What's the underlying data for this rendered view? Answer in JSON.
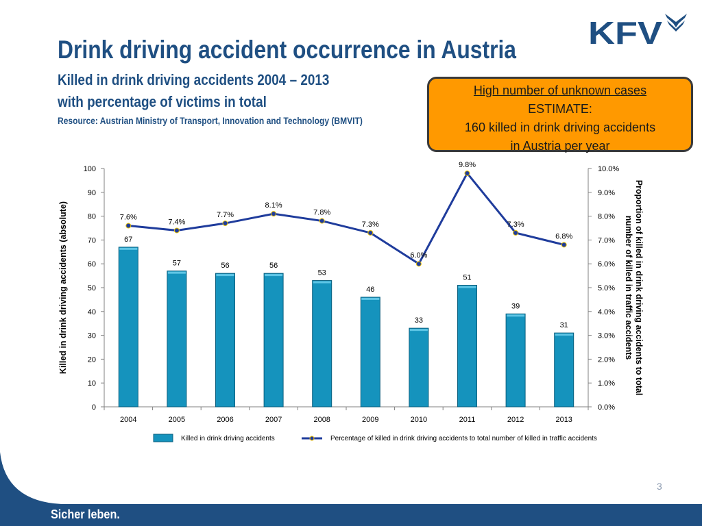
{
  "header": {
    "title": "Drink driving accident occurrence in Austria",
    "subtitle_line1": "Killed in drink driving accidents 2004 – 2013",
    "subtitle_line2": "with percentage of victims in total",
    "resource": "Resource: Austrian Ministry of Transport, Innovation and Technology (BMVIT)",
    "logo_text": "KFV"
  },
  "callout": {
    "line1": "High number of unknown cases",
    "line2": "ESTIMATE:",
    "line3": "160 killed in drink driving accidents",
    "line4": "in Austria per year"
  },
  "chart_data": {
    "type": "bar+line",
    "categories": [
      "2004",
      "2005",
      "2006",
      "2007",
      "2008",
      "2009",
      "2010",
      "2011",
      "2012",
      "2013"
    ],
    "series": [
      {
        "name": "Killed in drink driving accidents",
        "type": "bar",
        "axis": "left",
        "values": [
          67,
          57,
          56,
          56,
          53,
          46,
          33,
          51,
          39,
          31
        ],
        "labels": [
          "67",
          "57",
          "56",
          "56",
          "53",
          "46",
          "33",
          "51",
          "39",
          "31"
        ]
      },
      {
        "name": "Percentage of killed in drink driving accidents to total number of killed in traffic accidents",
        "type": "line",
        "axis": "right",
        "values": [
          7.6,
          7.4,
          7.7,
          8.1,
          7.8,
          7.3,
          6.0,
          9.8,
          7.3,
          6.8
        ],
        "labels": [
          "7.6%",
          "7.4%",
          "7.7%",
          "8.1%",
          "7.8%",
          "7.3%",
          "6.0%",
          "9.8%",
          "7.3%",
          "6.8%"
        ]
      }
    ],
    "ylabel_left": "Killed in drink driving accidents (absolute)",
    "ylabel_right_line1": "Proportion of killed in drink driving accidents to total",
    "ylabel_right_line2": "number of killed in traffic accidents",
    "ylim_left": [
      0,
      100
    ],
    "yticks_left": [
      "0",
      "10",
      "20",
      "30",
      "40",
      "50",
      "60",
      "70",
      "80",
      "90",
      "100"
    ],
    "ylim_right": [
      0,
      10
    ],
    "yticks_right": [
      "0.0%",
      "1.0%",
      "2.0%",
      "3.0%",
      "4.0%",
      "5.0%",
      "6.0%",
      "7.0%",
      "8.0%",
      "9.0%",
      "10.0%"
    ],
    "grid": false,
    "legend_position": "bottom",
    "colors": {
      "bar": "#1593bd",
      "bar_edge": "#0b5f7e",
      "line": "#1f3c9c",
      "marker": "#1f3c9c"
    }
  },
  "page": {
    "number": "3"
  },
  "footer": {
    "slogan": "Sicher leben."
  },
  "colors": {
    "title": "#1f4f82",
    "callout_bg": "#ff9900",
    "footer_bg": "#1f4f82"
  }
}
